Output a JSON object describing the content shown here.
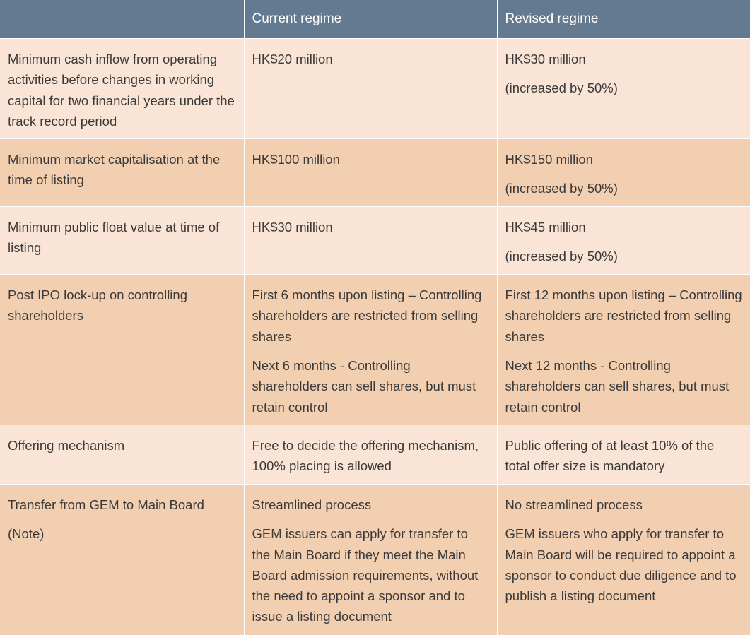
{
  "header": {
    "col1": "",
    "col2": "Current regime",
    "col3": "Revised regime"
  },
  "rows": [
    {
      "label": [
        "Minimum cash inflow from operating activities before changes in working capital for two financial years under the track record period"
      ],
      "current": [
        "HK$20 million"
      ],
      "revised": [
        "HK$30 million",
        "(increased by 50%)"
      ]
    },
    {
      "label": [
        "Minimum market capitalisation at the time of listing"
      ],
      "current": [
        "HK$100 million"
      ],
      "revised": [
        "HK$150 million",
        "(increased by 50%)"
      ]
    },
    {
      "label": [
        "Minimum public float value at time of listing"
      ],
      "current": [
        "HK$30 million"
      ],
      "revised": [
        "HK$45 million",
        "(increased by 50%)"
      ]
    },
    {
      "label": [
        "Post IPO lock-up on controlling shareholders"
      ],
      "current": [
        "First 6 months upon listing – Controlling shareholders are restricted from selling shares",
        "Next 6 months - Controlling shareholders can sell shares, but must retain control"
      ],
      "revised": [
        "First 12 months upon listing – Controlling shareholders are restricted from selling shares",
        "Next 12 months - Controlling shareholders can sell shares, but must retain control"
      ]
    },
    {
      "label": [
        "Offering mechanism"
      ],
      "current": [
        "Free to decide the offering mechanism, 100% placing is allowed"
      ],
      "revised": [
        "Public offering of at least 10% of the total offer size is mandatory"
      ]
    },
    {
      "label": [
        "Transfer from GEM to Main Board",
        "(Note)"
      ],
      "current": [
        "Streamlined process",
        "GEM issuers can apply for transfer to the Main Board if they meet the Main Board admission requirements, without the need to appoint a sponsor and to issue a listing document"
      ],
      "revised": [
        "No streamlined process",
        "GEM issuers who apply for transfer to Main Board will be required to appoint a sponsor to conduct due diligence and to publish a listing document"
      ]
    }
  ]
}
